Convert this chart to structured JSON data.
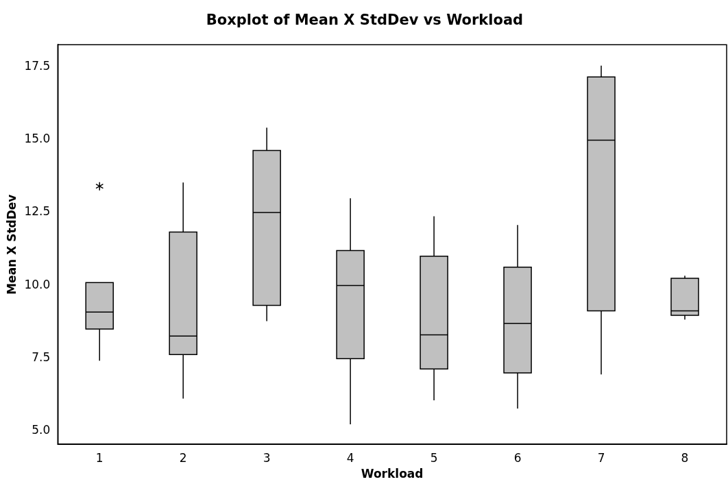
{
  "chart_data": {
    "type": "box",
    "title": "Boxplot of Mean X StdDev vs Workload",
    "xlabel": "Workload",
    "ylabel": "Mean X StdDev",
    "categories": [
      "1",
      "2",
      "3",
      "4",
      "5",
      "6",
      "7",
      "8"
    ],
    "color": "#c0c0c0",
    "boxes": [
      {
        "low": 7.41,
        "q1": 8.5,
        "median": 9.08,
        "q3": 10.09,
        "high": 10.09,
        "outliers": [
          13.4
        ]
      },
      {
        "low": 6.11,
        "q1": 7.62,
        "median": 8.26,
        "q3": 11.83,
        "high": 13.53
      },
      {
        "low": 8.77,
        "q1": 9.31,
        "median": 12.5,
        "q3": 14.63,
        "high": 15.41
      },
      {
        "low": 5.23,
        "q1": 7.48,
        "median": 9.99,
        "q3": 11.19,
        "high": 12.99
      },
      {
        "low": 6.05,
        "q1": 7.13,
        "median": 8.3,
        "q3": 11.0,
        "high": 12.37
      },
      {
        "low": 5.77,
        "q1": 6.99,
        "median": 8.69,
        "q3": 10.62,
        "high": 12.07
      },
      {
        "low": 6.94,
        "q1": 9.12,
        "median": 14.98,
        "q3": 17.15,
        "high": 17.54
      },
      {
        "low": 8.82,
        "q1": 8.97,
        "median": 9.12,
        "q3": 10.24,
        "high": 10.33
      }
    ],
    "ylim": [
      4.54,
      18.26
    ],
    "yticks": [
      {
        "value": 5,
        "label": "5.0"
      },
      7.5,
      {
        "value": 10,
        "label": "10.0"
      },
      12.5,
      {
        "value": 15,
        "label": "15.0"
      },
      17.5
    ]
  }
}
